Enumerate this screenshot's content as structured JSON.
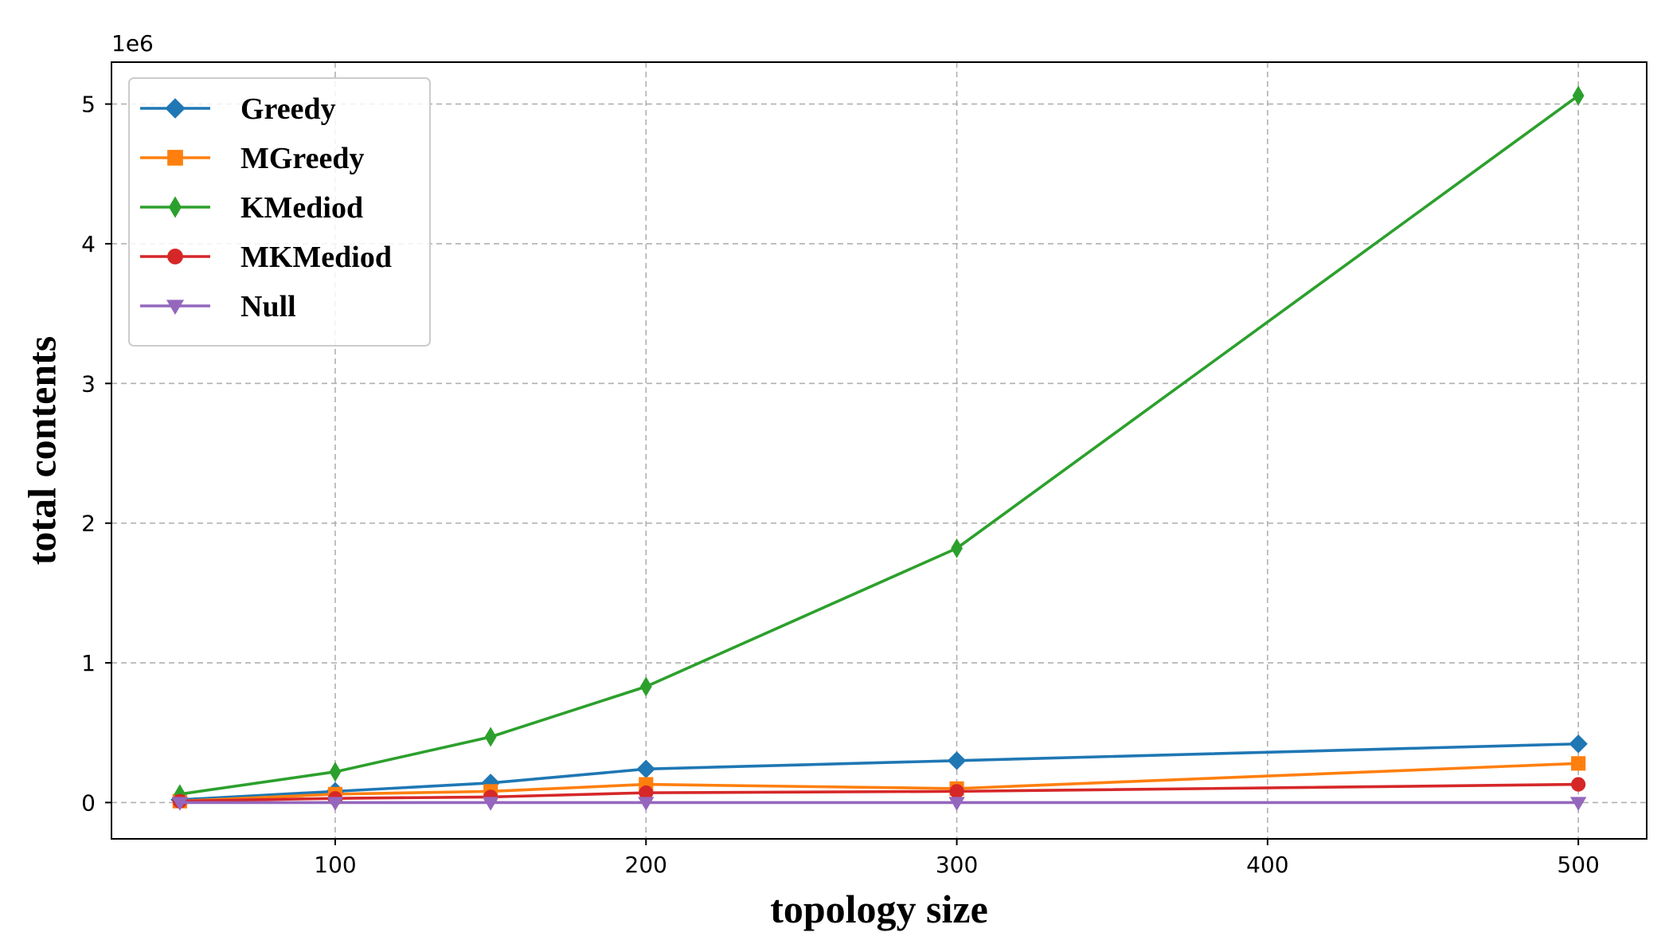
{
  "chart_data": {
    "type": "line",
    "xlabel": "topology size",
    "ylabel": "total contents",
    "offset_text": "1e6",
    "xlim": [
      28,
      522
    ],
    "ylim": [
      -0.26,
      5.3
    ],
    "x_ticks": [
      100,
      200,
      300,
      400,
      500
    ],
    "y_ticks": [
      0,
      1,
      2,
      3,
      4,
      5
    ],
    "y_tick_labels": [
      "0",
      "1",
      "2",
      "3",
      "4",
      "5"
    ],
    "grid": true,
    "legend_position": "upper-left",
    "x": [
      50,
      100,
      150,
      200,
      300,
      500
    ],
    "series": [
      {
        "name": "Greedy",
        "color": "#1f77b4",
        "marker": "diamond",
        "values": [
          0.02,
          0.08,
          0.14,
          0.24,
          0.3,
          0.42
        ]
      },
      {
        "name": "MGreedy",
        "color": "#ff7f0e",
        "marker": "square",
        "values": [
          0.01,
          0.06,
          0.08,
          0.13,
          0.1,
          0.28
        ]
      },
      {
        "name": "KMediod",
        "color": "#2ca02c",
        "marker": "thin-diamond",
        "values": [
          0.06,
          0.22,
          0.47,
          0.83,
          1.82,
          5.06
        ]
      },
      {
        "name": "MKMediod",
        "color": "#d62728",
        "marker": "circle",
        "values": [
          0.01,
          0.03,
          0.04,
          0.07,
          0.08,
          0.13
        ]
      },
      {
        "name": "Null",
        "color": "#9467bd",
        "marker": "triangle-down",
        "values": [
          0.0,
          0.0,
          0.0,
          0.0,
          0.0,
          0.0
        ]
      }
    ]
  }
}
